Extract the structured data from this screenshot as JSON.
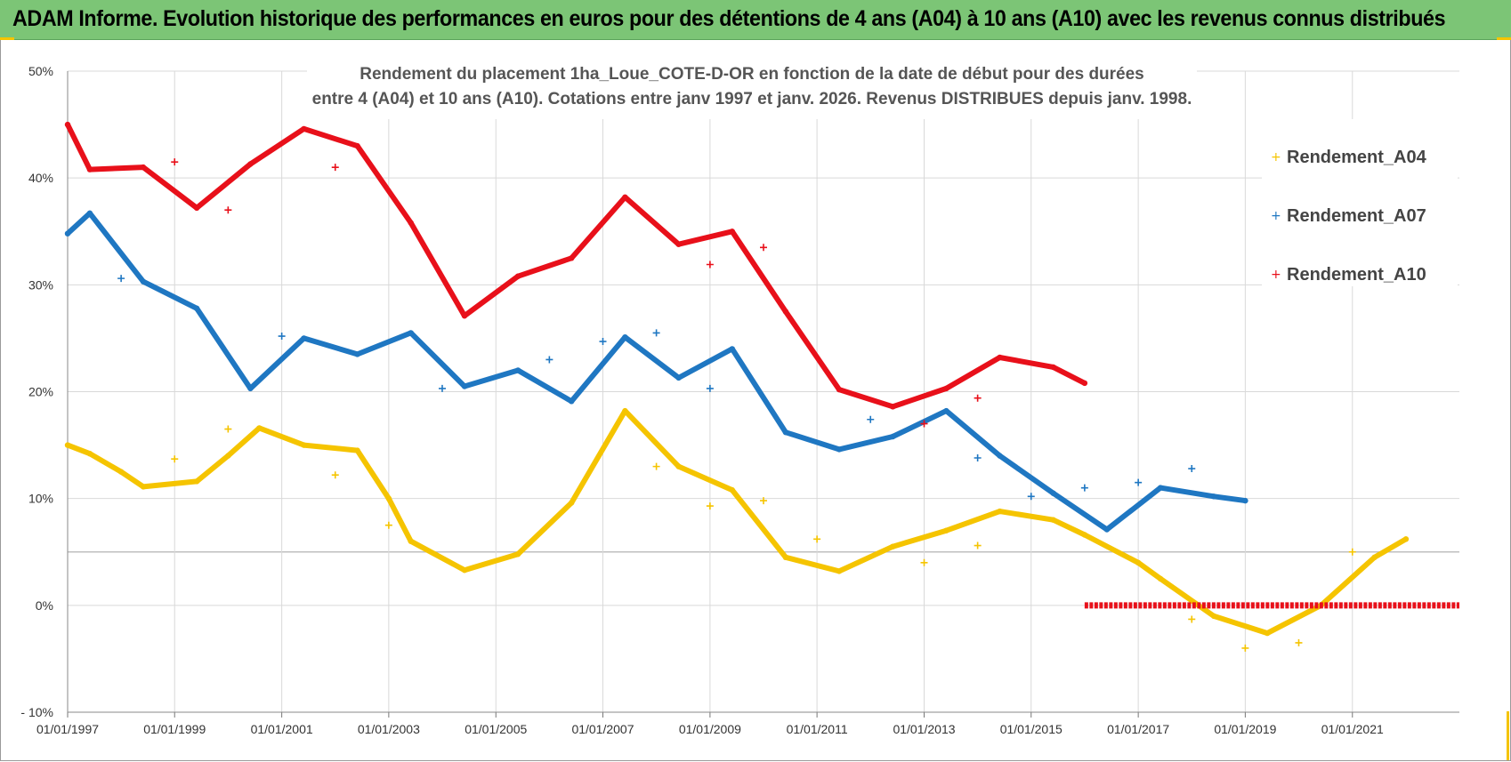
{
  "banner": {
    "title": "ADAM Informe. Evolution historique des performances en euros pour des détentions de 4 ans (A04) à 10 ans (A10) avec les revenus connus distribués"
  },
  "colors": {
    "banner_bg": "#7cc576",
    "accent_corner": "#f5c400",
    "A04": "#f5c400",
    "A07": "#1f77c2",
    "A10": "#e8101a",
    "grid": "#d9d9d9",
    "grid_highlight": "#bfbfbf"
  },
  "chart_data": {
    "type": "line",
    "title_lines": [
      "Rendement du placement 1ha_Loue_COTE-D-OR en fonction de la date de début pour des durées",
      "entre 4 (A04) et 10 ans (A10). Cotations entre janv 1997 et janv. 2026. Revenus DISTRIBUES depuis janv. 1998."
    ],
    "xlabel": "",
    "ylabel": "",
    "x_range": [
      "1997-01-01",
      "2023-01-01"
    ],
    "x_ticks": [
      "01/01/1997",
      "01/01/1999",
      "01/01/2001",
      "01/01/2003",
      "01/01/2005",
      "01/01/2007",
      "01/01/2009",
      "01/01/2011",
      "01/01/2013",
      "01/01/2015",
      "01/01/2017",
      "01/01/2019",
      "01/01/2021"
    ],
    "y_range": [
      -10,
      50
    ],
    "y_ticks": [
      {
        "value": 50,
        "label": "50%"
      },
      {
        "value": 40,
        "label": "40%"
      },
      {
        "value": 30,
        "label": "30%"
      },
      {
        "value": 20,
        "label": "20%"
      },
      {
        "value": 10,
        "label": "10%"
      },
      {
        "value": 0,
        "label": "0%"
      },
      {
        "value": -10,
        "label": "- 10%"
      }
    ],
    "highlight_line": 5,
    "grid": true,
    "legend_position": "right",
    "series": [
      {
        "name": "Rendement_A04",
        "color": "#f5c400",
        "points": [
          [
            "1997-01-01",
            15.0
          ],
          [
            "1997-06-01",
            14.2
          ],
          [
            "1998-01-01",
            12.5
          ],
          [
            "1998-06-01",
            11.1
          ],
          [
            "1999-06-01",
            11.6
          ],
          [
            "2000-01-01",
            14.0
          ],
          [
            "2000-08-01",
            16.6
          ],
          [
            "2001-06-01",
            15.0
          ],
          [
            "2002-06-01",
            14.5
          ],
          [
            "2003-01-01",
            10.0
          ],
          [
            "2003-06-01",
            6.0
          ],
          [
            "2004-06-01",
            3.3
          ],
          [
            "2005-06-01",
            4.8
          ],
          [
            "2006-06-01",
            9.6
          ],
          [
            "2007-06-01",
            18.2
          ],
          [
            "2008-06-01",
            13.0
          ],
          [
            "2009-06-01",
            10.8
          ],
          [
            "2010-06-01",
            4.5
          ],
          [
            "2011-06-01",
            3.2
          ],
          [
            "2012-06-01",
            5.5
          ],
          [
            "2013-06-01",
            7.0
          ],
          [
            "2014-06-01",
            8.8
          ],
          [
            "2015-06-01",
            8.0
          ],
          [
            "2016-01-01",
            6.6
          ],
          [
            "2017-01-01",
            4.0
          ],
          [
            "2017-06-01",
            2.5
          ],
          [
            "2018-06-01",
            -1.0
          ],
          [
            "2019-06-01",
            -2.6
          ],
          [
            "2020-06-01",
            0.0
          ],
          [
            "2021-06-01",
            4.5
          ],
          [
            "2022-01-01",
            6.2
          ]
        ],
        "outliers": [
          [
            "1999-01-01",
            13.7
          ],
          [
            "2000-01-01",
            16.5
          ],
          [
            "2002-01-01",
            12.2
          ],
          [
            "2003-01-01",
            7.5
          ],
          [
            "2008-01-01",
            13.0
          ],
          [
            "2009-01-01",
            9.3
          ],
          [
            "2010-01-01",
            9.8
          ],
          [
            "2011-01-01",
            6.2
          ],
          [
            "2013-01-01",
            4.0
          ],
          [
            "2014-01-01",
            5.6
          ],
          [
            "2018-01-01",
            -1.3
          ],
          [
            "2019-01-01",
            -4.0
          ],
          [
            "2020-01-01",
            -3.5
          ],
          [
            "2021-01-01",
            5.0
          ]
        ]
      },
      {
        "name": "Rendement_A07",
        "color": "#1f77c2",
        "points": [
          [
            "1997-01-01",
            34.8
          ],
          [
            "1997-06-01",
            36.7
          ],
          [
            "1998-06-01",
            30.3
          ],
          [
            "1999-06-01",
            27.8
          ],
          [
            "2000-06-01",
            20.3
          ],
          [
            "2001-06-01",
            25.0
          ],
          [
            "2002-06-01",
            23.5
          ],
          [
            "2003-06-01",
            25.5
          ],
          [
            "2004-06-01",
            20.5
          ],
          [
            "2005-06-01",
            22.0
          ],
          [
            "2006-06-01",
            19.1
          ],
          [
            "2007-06-01",
            25.1
          ],
          [
            "2008-06-01",
            21.3
          ],
          [
            "2009-06-01",
            24.0
          ],
          [
            "2010-06-01",
            16.2
          ],
          [
            "2011-06-01",
            14.6
          ],
          [
            "2012-06-01",
            15.8
          ],
          [
            "2013-06-01",
            18.2
          ],
          [
            "2014-06-01",
            14.0
          ],
          [
            "2015-06-01",
            10.5
          ],
          [
            "2016-06-01",
            7.1
          ],
          [
            "2017-06-01",
            11.0
          ],
          [
            "2018-06-01",
            10.2
          ],
          [
            "2019-01-01",
            9.8
          ]
        ],
        "outliers": [
          [
            "1998-01-01",
            30.6
          ],
          [
            "2001-01-01",
            25.2
          ],
          [
            "2004-01-01",
            20.3
          ],
          [
            "2006-01-01",
            23.0
          ],
          [
            "2007-01-01",
            24.7
          ],
          [
            "2008-01-01",
            25.5
          ],
          [
            "2009-01-01",
            20.3
          ],
          [
            "2012-01-01",
            17.4
          ],
          [
            "2014-01-01",
            13.8
          ],
          [
            "2015-01-01",
            10.2
          ],
          [
            "2016-01-01",
            11.0
          ],
          [
            "2017-01-01",
            11.5
          ],
          [
            "2018-01-01",
            12.8
          ]
        ]
      },
      {
        "name": "Rendement_A10",
        "color": "#e8101a",
        "points": [
          [
            "1997-01-01",
            45.0
          ],
          [
            "1997-06-01",
            40.8
          ],
          [
            "1998-06-01",
            41.0
          ],
          [
            "1999-06-01",
            37.2
          ],
          [
            "2000-06-01",
            41.3
          ],
          [
            "2001-06-01",
            44.6
          ],
          [
            "2002-06-01",
            43.0
          ],
          [
            "2003-06-01",
            35.8
          ],
          [
            "2004-06-01",
            27.1
          ],
          [
            "2005-06-01",
            30.8
          ],
          [
            "2006-06-01",
            32.5
          ],
          [
            "2007-06-01",
            38.2
          ],
          [
            "2008-06-01",
            33.8
          ],
          [
            "2009-06-01",
            35.0
          ],
          [
            "2010-06-01",
            27.5
          ],
          [
            "2011-06-01",
            20.2
          ],
          [
            "2012-06-01",
            18.6
          ],
          [
            "2013-06-01",
            20.3
          ],
          [
            "2014-06-01",
            23.2
          ],
          [
            "2015-06-01",
            22.3
          ],
          [
            "2016-01-01",
            20.8
          ]
        ],
        "outliers": [
          [
            "1999-01-01",
            41.5
          ],
          [
            "2000-01-01",
            37.0
          ],
          [
            "2002-01-01",
            41.0
          ],
          [
            "2009-01-01",
            31.9
          ],
          [
            "2010-01-01",
            33.5
          ],
          [
            "2013-01-01",
            17.0
          ],
          [
            "2014-01-01",
            19.4
          ]
        ],
        "flat_segment": {
          "from": "2016-01-01",
          "to": "2023-01-01",
          "value": 0
        }
      }
    ]
  }
}
